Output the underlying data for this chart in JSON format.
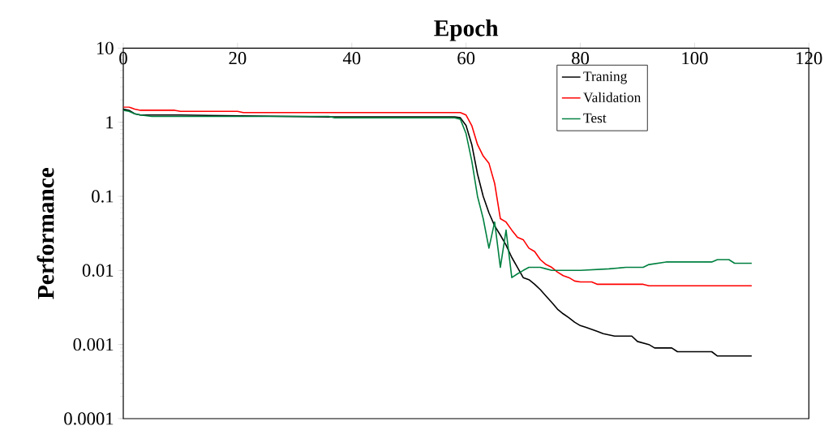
{
  "chart_data": {
    "type": "line",
    "xlabel": "Epoch",
    "ylabel": "Performance",
    "log": "y",
    "xlim": [
      0,
      120
    ],
    "xticks": [
      0,
      20,
      40,
      60,
      80,
      100,
      120
    ],
    "ylim": [
      0.0001,
      10
    ],
    "yticks": [
      0.0001,
      0.001,
      0.01,
      0.1,
      1,
      10
    ],
    "legend": "top right",
    "marker": "none",
    "line_style": "solid",
    "grid": false,
    "series": [
      {
        "name": "Traning",
        "color": "#000000",
        "x": [
          0,
          1,
          2,
          3,
          5,
          6,
          10,
          36,
          58,
          59,
          60,
          61,
          62,
          63,
          64,
          65,
          66,
          67,
          68,
          69,
          70,
          71,
          72,
          73,
          74,
          75,
          76,
          77,
          78,
          79,
          80,
          81,
          82,
          83,
          84,
          86,
          89,
          90,
          92,
          93,
          96,
          97,
          103,
          104,
          110
        ],
        "values": [
          1.5,
          1.45,
          1.3,
          1.25,
          1.25,
          1.25,
          1.25,
          1.18,
          1.18,
          1.15,
          0.9,
          0.5,
          0.2,
          0.1,
          0.06,
          0.04,
          0.03,
          0.022,
          0.015,
          0.011,
          0.008,
          0.0075,
          0.0065,
          0.0055,
          0.0045,
          0.0037,
          0.003,
          0.0026,
          0.0023,
          0.002,
          0.0018,
          0.0017,
          0.0016,
          0.0015,
          0.0014,
          0.0013,
          0.0013,
          0.0011,
          0.001,
          0.0009,
          0.0009,
          0.0008,
          0.0008,
          0.0007,
          0.0007
        ]
      },
      {
        "name": "Validation",
        "color": "#ff0000",
        "x": [
          0,
          1,
          2,
          3,
          9,
          10,
          20,
          21,
          59,
          60,
          61,
          62,
          63,
          64,
          65,
          66,
          67,
          68,
          69,
          70,
          71,
          72,
          73,
          74,
          75,
          76,
          77,
          78,
          79,
          80,
          82,
          83,
          91,
          92,
          110
        ],
        "values": [
          1.6,
          1.6,
          1.5,
          1.45,
          1.45,
          1.4,
          1.4,
          1.35,
          1.35,
          1.25,
          0.9,
          0.5,
          0.35,
          0.28,
          0.15,
          0.05,
          0.045,
          0.035,
          0.028,
          0.026,
          0.02,
          0.018,
          0.014,
          0.012,
          0.011,
          0.0095,
          0.0085,
          0.008,
          0.0072,
          0.007,
          0.007,
          0.0065,
          0.0065,
          0.0062,
          0.0062
        ]
      },
      {
        "name": "Test",
        "color": "#008040",
        "x": [
          0,
          1,
          2,
          3,
          5,
          36,
          37,
          58,
          59,
          60,
          61,
          62,
          63,
          64,
          65,
          66,
          67,
          68,
          69,
          70,
          71,
          72,
          73,
          74,
          75,
          80,
          85,
          88,
          91,
          92,
          95,
          103,
          104,
          106,
          107,
          110
        ],
        "values": [
          1.45,
          1.4,
          1.3,
          1.25,
          1.2,
          1.2,
          1.15,
          1.15,
          1.1,
          0.7,
          0.3,
          0.1,
          0.05,
          0.02,
          0.045,
          0.011,
          0.035,
          0.008,
          0.009,
          0.01,
          0.011,
          0.011,
          0.011,
          0.0105,
          0.01,
          0.01,
          0.0105,
          0.011,
          0.011,
          0.012,
          0.013,
          0.013,
          0.014,
          0.014,
          0.0125,
          0.0125
        ]
      }
    ]
  }
}
